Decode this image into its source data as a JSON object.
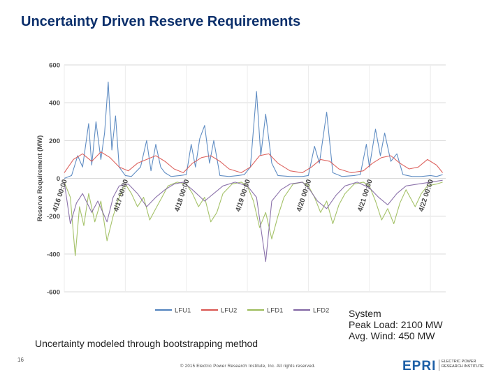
{
  "slide": {
    "title": "Uncertainty Driven Reserve Requirements",
    "caption": "Uncertainty modeled through  bootstrapping method",
    "note_lines": [
      "System",
      "Peak Load: 2100 MW",
      "Avg. Wind: 450 MW"
    ],
    "page_number": "16",
    "copyright": "© 2015 Electric Power Research Institute, Inc. All rights reserved.",
    "logo": {
      "mark": "EPRI",
      "text_lines": [
        "ELECTRIC POWER",
        "RESEARCH INSTITUTE"
      ]
    }
  },
  "colors": {
    "LFU1": "#4f81bd",
    "LFU2": "#d9534f",
    "LFD1": "#9bbb59",
    "LFD2": "#8064a2"
  },
  "chart_data": {
    "type": "line",
    "ylabel": "Reserve Requirement (MW)",
    "xlabel": "",
    "ylim": [
      -600,
      600
    ],
    "yticks": [
      600,
      400,
      200,
      0,
      -200,
      -400,
      -600
    ],
    "grid": true,
    "legend": "bottom",
    "x_tick_labels": [
      "4/16 00:00",
      "4/17 00:00",
      "4/18 00:00",
      "4/19 00:00",
      "4/20 00:00",
      "4/21 00:00",
      "4/22 00:00"
    ],
    "x_tick_positions": [
      0,
      1,
      2,
      3,
      4,
      5,
      6
    ],
    "x_unit": "days from 4/16 00:00",
    "series": [
      {
        "name": "LFU1",
        "points": [
          [
            0,
            0
          ],
          [
            0.12,
            15
          ],
          [
            0.22,
            120
          ],
          [
            0.3,
            60
          ],
          [
            0.4,
            290
          ],
          [
            0.45,
            70
          ],
          [
            0.52,
            300
          ],
          [
            0.6,
            100
          ],
          [
            0.66,
            240
          ],
          [
            0.72,
            510
          ],
          [
            0.78,
            150
          ],
          [
            0.84,
            330
          ],
          [
            0.9,
            60
          ],
          [
            1.0,
            15
          ],
          [
            1.1,
            10
          ],
          [
            1.25,
            60
          ],
          [
            1.35,
            200
          ],
          [
            1.42,
            40
          ],
          [
            1.5,
            180
          ],
          [
            1.58,
            60
          ],
          [
            1.65,
            30
          ],
          [
            1.75,
            10
          ],
          [
            1.9,
            15
          ],
          [
            2.0,
            20
          ],
          [
            2.08,
            180
          ],
          [
            2.15,
            60
          ],
          [
            2.22,
            210
          ],
          [
            2.3,
            280
          ],
          [
            2.38,
            80
          ],
          [
            2.45,
            200
          ],
          [
            2.55,
            15
          ],
          [
            2.7,
            10
          ],
          [
            2.85,
            15
          ],
          [
            2.95,
            20
          ],
          [
            3.05,
            60
          ],
          [
            3.15,
            460
          ],
          [
            3.22,
            120
          ],
          [
            3.3,
            340
          ],
          [
            3.4,
            80
          ],
          [
            3.5,
            15
          ],
          [
            3.7,
            10
          ],
          [
            3.9,
            10
          ],
          [
            4.0,
            15
          ],
          [
            4.1,
            170
          ],
          [
            4.18,
            80
          ],
          [
            4.3,
            350
          ],
          [
            4.4,
            30
          ],
          [
            4.55,
            10
          ],
          [
            4.75,
            15
          ],
          [
            4.85,
            20
          ],
          [
            4.95,
            180
          ],
          [
            5.0,
            60
          ],
          [
            5.1,
            260
          ],
          [
            5.18,
            120
          ],
          [
            5.25,
            240
          ],
          [
            5.35,
            90
          ],
          [
            5.45,
            130
          ],
          [
            5.55,
            20
          ],
          [
            5.7,
            10
          ],
          [
            5.85,
            10
          ],
          [
            6.0,
            15
          ],
          [
            6.1,
            10
          ],
          [
            6.2,
            20
          ]
        ]
      },
      {
        "name": "LFU2",
        "points": [
          [
            0,
            30
          ],
          [
            0.15,
            100
          ],
          [
            0.3,
            130
          ],
          [
            0.45,
            90
          ],
          [
            0.6,
            140
          ],
          [
            0.75,
            110
          ],
          [
            0.9,
            60
          ],
          [
            1.05,
            40
          ],
          [
            1.2,
            80
          ],
          [
            1.35,
            100
          ],
          [
            1.5,
            120
          ],
          [
            1.65,
            90
          ],
          [
            1.8,
            50
          ],
          [
            1.95,
            30
          ],
          [
            2.1,
            80
          ],
          [
            2.25,
            110
          ],
          [
            2.4,
            120
          ],
          [
            2.55,
            90
          ],
          [
            2.7,
            50
          ],
          [
            2.9,
            30
          ],
          [
            3.05,
            60
          ],
          [
            3.2,
            120
          ],
          [
            3.35,
            130
          ],
          [
            3.5,
            80
          ],
          [
            3.7,
            40
          ],
          [
            3.9,
            30
          ],
          [
            4.05,
            60
          ],
          [
            4.2,
            100
          ],
          [
            4.35,
            90
          ],
          [
            4.5,
            50
          ],
          [
            4.7,
            30
          ],
          [
            4.9,
            40
          ],
          [
            5.05,
            80
          ],
          [
            5.2,
            110
          ],
          [
            5.35,
            120
          ],
          [
            5.5,
            80
          ],
          [
            5.65,
            50
          ],
          [
            5.8,
            60
          ],
          [
            5.95,
            100
          ],
          [
            6.1,
            70
          ],
          [
            6.2,
            30
          ]
        ]
      },
      {
        "name": "LFD1",
        "points": [
          [
            0,
            -20
          ],
          [
            0.1,
            -100
          ],
          [
            0.18,
            -410
          ],
          [
            0.25,
            -150
          ],
          [
            0.32,
            -250
          ],
          [
            0.4,
            -80
          ],
          [
            0.5,
            -230
          ],
          [
            0.6,
            -120
          ],
          [
            0.7,
            -330
          ],
          [
            0.8,
            -200
          ],
          [
            0.9,
            -100
          ],
          [
            1.0,
            -30
          ],
          [
            1.1,
            -80
          ],
          [
            1.2,
            -150
          ],
          [
            1.3,
            -100
          ],
          [
            1.4,
            -220
          ],
          [
            1.5,
            -160
          ],
          [
            1.6,
            -100
          ],
          [
            1.7,
            -40
          ],
          [
            1.85,
            -20
          ],
          [
            2.0,
            -30
          ],
          [
            2.1,
            -80
          ],
          [
            2.2,
            -150
          ],
          [
            2.3,
            -100
          ],
          [
            2.4,
            -230
          ],
          [
            2.5,
            -180
          ],
          [
            2.6,
            -80
          ],
          [
            2.75,
            -30
          ],
          [
            2.9,
            -20
          ],
          [
            3.0,
            -40
          ],
          [
            3.1,
            -120
          ],
          [
            3.2,
            -260
          ],
          [
            3.3,
            -180
          ],
          [
            3.4,
            -320
          ],
          [
            3.5,
            -200
          ],
          [
            3.6,
            -100
          ],
          [
            3.75,
            -30
          ],
          [
            3.9,
            -20
          ],
          [
            4.0,
            -40
          ],
          [
            4.1,
            -100
          ],
          [
            4.2,
            -180
          ],
          [
            4.3,
            -120
          ],
          [
            4.4,
            -240
          ],
          [
            4.5,
            -140
          ],
          [
            4.6,
            -80
          ],
          [
            4.75,
            -30
          ],
          [
            4.9,
            -20
          ],
          [
            5.0,
            -40
          ],
          [
            5.1,
            -120
          ],
          [
            5.2,
            -220
          ],
          [
            5.3,
            -160
          ],
          [
            5.4,
            -240
          ],
          [
            5.5,
            -130
          ],
          [
            5.6,
            -60
          ],
          [
            5.75,
            -150
          ],
          [
            5.85,
            -80
          ],
          [
            5.95,
            -40
          ],
          [
            6.1,
            -30
          ],
          [
            6.2,
            -20
          ]
        ]
      },
      {
        "name": "LFD2",
        "points": [
          [
            0,
            -20
          ],
          [
            0.1,
            -240
          ],
          [
            0.2,
            -130
          ],
          [
            0.3,
            -80
          ],
          [
            0.45,
            -180
          ],
          [
            0.55,
            -120
          ],
          [
            0.7,
            -230
          ],
          [
            0.8,
            -100
          ],
          [
            0.9,
            -40
          ],
          [
            1.05,
            -30
          ],
          [
            1.2,
            -80
          ],
          [
            1.35,
            -150
          ],
          [
            1.5,
            -100
          ],
          [
            1.65,
            -60
          ],
          [
            1.8,
            -30
          ],
          [
            1.95,
            -20
          ],
          [
            2.1,
            -60
          ],
          [
            2.3,
            -120
          ],
          [
            2.45,
            -80
          ],
          [
            2.6,
            -40
          ],
          [
            2.8,
            -20
          ],
          [
            3.0,
            -40
          ],
          [
            3.15,
            -100
          ],
          [
            3.3,
            -440
          ],
          [
            3.4,
            -120
          ],
          [
            3.55,
            -60
          ],
          [
            3.7,
            -30
          ],
          [
            3.9,
            -20
          ],
          [
            4.0,
            -50
          ],
          [
            4.15,
            -120
          ],
          [
            4.3,
            -160
          ],
          [
            4.45,
            -90
          ],
          [
            4.6,
            -40
          ],
          [
            4.8,
            -20
          ],
          [
            5.0,
            -50
          ],
          [
            5.15,
            -100
          ],
          [
            5.3,
            -140
          ],
          [
            5.45,
            -80
          ],
          [
            5.6,
            -40
          ],
          [
            5.8,
            -30
          ],
          [
            6.0,
            -20
          ],
          [
            6.2,
            -10
          ]
        ]
      }
    ]
  }
}
